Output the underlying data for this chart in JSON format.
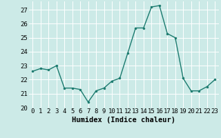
{
  "x": [
    0,
    1,
    2,
    3,
    4,
    5,
    6,
    7,
    8,
    9,
    10,
    11,
    12,
    13,
    14,
    15,
    16,
    17,
    18,
    19,
    20,
    21,
    22,
    23
  ],
  "y": [
    22.6,
    22.8,
    22.7,
    23.0,
    21.4,
    21.4,
    21.3,
    20.4,
    21.2,
    21.4,
    21.9,
    22.1,
    23.9,
    25.7,
    25.7,
    27.2,
    27.3,
    25.3,
    25.0,
    22.1,
    21.2,
    21.2,
    21.5,
    22.0
  ],
  "line_color": "#1a7a6e",
  "marker": "o",
  "marker_size": 2.0,
  "bg_color": "#cceae7",
  "grid_color": "#ffffff",
  "xlabel": "Humidex (Indice chaleur)",
  "ylim": [
    20,
    27.6
  ],
  "xlim": [
    -0.5,
    23.5
  ],
  "yticks": [
    20,
    21,
    22,
    23,
    24,
    25,
    26,
    27
  ],
  "xticks": [
    0,
    1,
    2,
    3,
    4,
    5,
    6,
    7,
    8,
    9,
    10,
    11,
    12,
    13,
    14,
    15,
    16,
    17,
    18,
    19,
    20,
    21,
    22,
    23
  ],
  "tick_fontsize": 6.5,
  "xlabel_fontsize": 7.5
}
